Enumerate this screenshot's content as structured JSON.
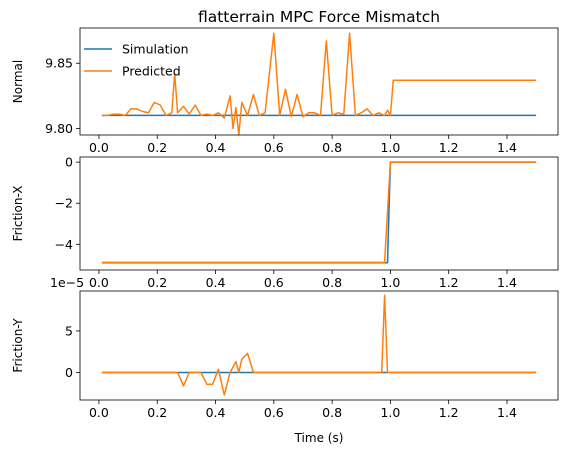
{
  "chart_data": {
    "type": "line",
    "title": "flatterrain MPC Force Mismatch",
    "xlabel": "Time (s)",
    "colors": {
      "Simulation": "#1f77b4",
      "Predicted": "#ff7f0e"
    },
    "legend": {
      "placement": "upper-left",
      "subplot": 0
    },
    "xlim": [
      -0.065,
      1.575
    ],
    "xticks": [
      0.0,
      0.2,
      0.4,
      0.6,
      0.8,
      1.0,
      1.2,
      1.4
    ],
    "subplots": [
      {
        "ylabel": "Normal",
        "ylim": [
          9.795,
          9.877
        ],
        "yticks": [
          9.8,
          9.85
        ],
        "series": [
          {
            "name": "Simulation",
            "x": [
              0.01,
              1.0,
              1.5
            ],
            "y": [
              9.81,
              9.81,
              9.81
            ]
          },
          {
            "name": "Predicted",
            "x": [
              0.01,
              0.03,
              0.05,
              0.07,
              0.09,
              0.11,
              0.13,
              0.15,
              0.17,
              0.19,
              0.21,
              0.23,
              0.25,
              0.26,
              0.27,
              0.29,
              0.31,
              0.33,
              0.35,
              0.37,
              0.39,
              0.41,
              0.43,
              0.45,
              0.46,
              0.47,
              0.48,
              0.49,
              0.51,
              0.53,
              0.55,
              0.57,
              0.6,
              0.62,
              0.64,
              0.66,
              0.68,
              0.7,
              0.72,
              0.74,
              0.76,
              0.78,
              0.8,
              0.82,
              0.84,
              0.86,
              0.88,
              0.9,
              0.92,
              0.94,
              0.96,
              0.98,
              0.99,
              1.0,
              1.01,
              1.5
            ],
            "y": [
              9.81,
              9.81,
              9.811,
              9.811,
              9.81,
              9.815,
              9.815,
              9.813,
              9.812,
              9.82,
              9.818,
              9.81,
              9.812,
              9.842,
              9.812,
              9.817,
              9.811,
              9.818,
              9.81,
              9.811,
              9.81,
              9.812,
              9.808,
              9.825,
              9.8,
              9.816,
              9.795,
              9.82,
              9.81,
              9.826,
              9.81,
              9.812,
              9.873,
              9.81,
              9.83,
              9.809,
              9.826,
              9.809,
              9.812,
              9.812,
              9.81,
              9.867,
              9.81,
              9.812,
              9.811,
              9.873,
              9.81,
              9.812,
              9.815,
              9.81,
              9.812,
              9.81,
              9.814,
              9.81,
              9.837,
              9.837
            ]
          }
        ]
      },
      {
        "ylabel": "Friction-X",
        "ylim": [
          -5.25,
          0.25
        ],
        "yticks": [
          -4,
          -2,
          0
        ],
        "series": [
          {
            "name": "Simulation",
            "x": [
              0.01,
              0.99,
              1.0,
              1.5
            ],
            "y": [
              -4.9,
              -4.9,
              0.0,
              0.0
            ]
          },
          {
            "name": "Predicted",
            "x": [
              0.01,
              0.98,
              1.0,
              1.5
            ],
            "y": [
              -4.88,
              -4.88,
              0.0,
              0.0
            ]
          }
        ]
      },
      {
        "ylabel": "Friction-Y",
        "offset_label": "1e-5",
        "ylim": [
          -3.3,
          9.8
        ],
        "yticks": [
          0,
          5
        ],
        "series": [
          {
            "name": "Simulation",
            "x": [
              0.01,
              1.5
            ],
            "y": [
              0.0,
              0.0
            ]
          },
          {
            "name": "Predicted",
            "x": [
              0.01,
              0.27,
              0.29,
              0.31,
              0.33,
              0.35,
              0.37,
              0.39,
              0.41,
              0.43,
              0.45,
              0.47,
              0.48,
              0.49,
              0.51,
              0.53,
              0.97,
              0.98,
              0.99,
              1.5
            ],
            "y": [
              0.0,
              0.0,
              -1.6,
              0.0,
              0.0,
              0.0,
              -1.4,
              -1.4,
              0.4,
              -2.7,
              0.0,
              1.3,
              0.0,
              1.6,
              2.3,
              0.0,
              0.0,
              9.3,
              0.0,
              0.0
            ]
          }
        ]
      }
    ]
  }
}
